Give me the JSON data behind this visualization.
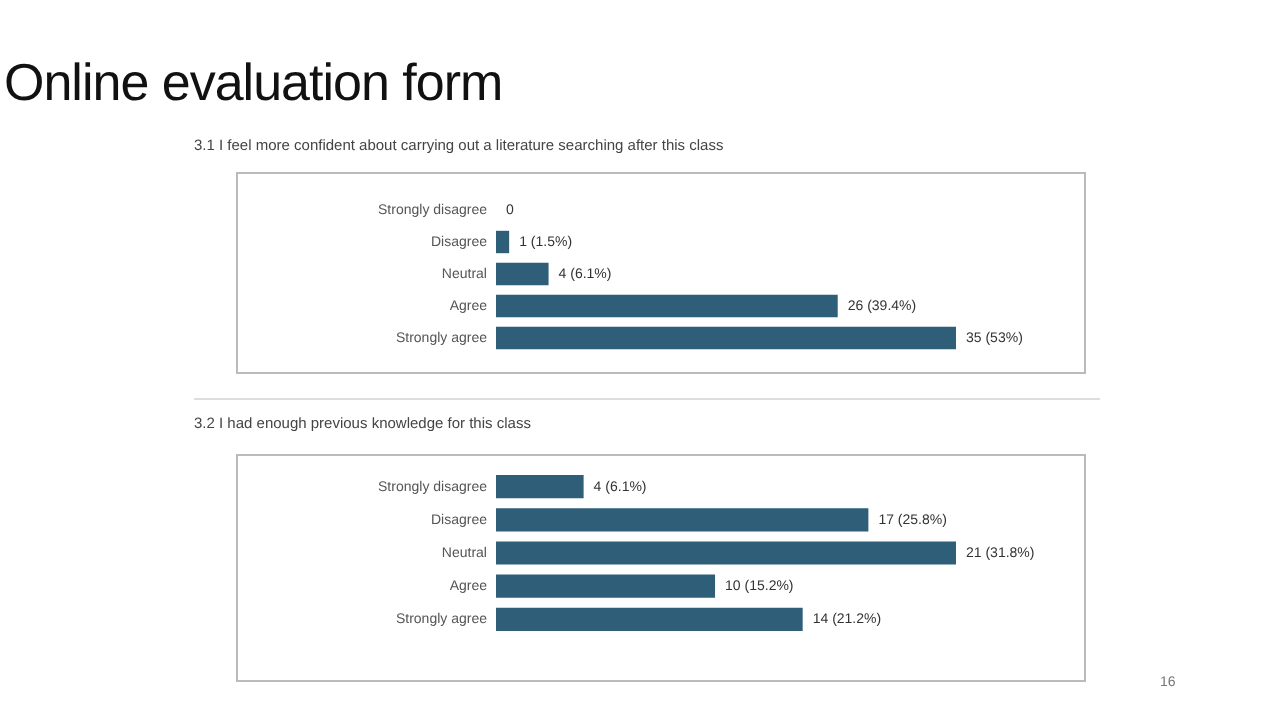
{
  "chart_data": [
    {
      "type": "bar",
      "title": "Online evaluation form",
      "subtitle": "3.1 I feel more confident about carrying out a literature searching after this class",
      "orientation": "horizontal",
      "color": "#2e5e78",
      "categories": [
        "Strongly disagree",
        "Disagree",
        "Neutral",
        "Agree",
        "Strongly agree"
      ],
      "values": [
        0,
        1,
        4,
        26,
        35
      ],
      "value_labels": [
        "0",
        "1 (1.5%)",
        "4 (6.1%)",
        "26 (39.4%)",
        "35 (53%)"
      ]
    },
    {
      "type": "bar",
      "title": "3.2 I had enough previous knowledge for this class",
      "orientation": "horizontal",
      "color": "#2e5e78",
      "categories": [
        "Strongly disagree",
        "Disagree",
        "Neutral",
        "Agree",
        "Strongly agree"
      ],
      "values": [
        4,
        17,
        21,
        10,
        14
      ],
      "value_labels": [
        "4 (6.1%)",
        "17 (25.8%)",
        "21 (31.8%)",
        "10 (15.2%)",
        "14 (21.2%)"
      ],
      "annotations": [
        "16"
      ]
    }
  ]
}
